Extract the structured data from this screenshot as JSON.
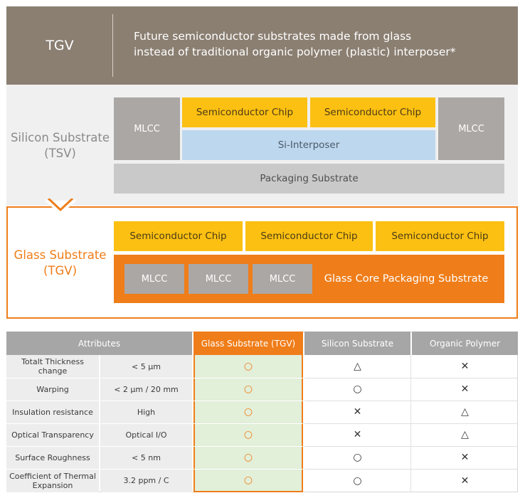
{
  "header": {
    "label": "TGV",
    "description_lines": [
      "Future semiconductor substrates made from glass",
      "instead of traditional organic polymer (plastic) interposer*"
    ]
  },
  "silicon": {
    "title_line1": "Silicon Substrate",
    "title_line2": "(TSV)",
    "mlcc_left": "MLCC",
    "mlcc_right": "MLCC",
    "chip1": "Semiconductor Chip",
    "chip2": "Semiconductor Chip",
    "interposer": "Si-Interposer",
    "packaging": "Packaging Substrate"
  },
  "glass": {
    "title_line1": "Glass Substrate",
    "title_line2": "(TGV)",
    "chips": [
      "Semiconductor Chip",
      "Semiconductor Chip",
      "Semiconductor Chip"
    ],
    "mlccs": [
      "MLCC",
      "MLCC",
      "MLCC"
    ],
    "core": "Glass Core Packaging Substrate"
  },
  "table": {
    "headers": {
      "attributes": "Attributes",
      "glass": "Glass Substrate (TGV)",
      "silicon": "Silicon Substrate",
      "organic": "Organic Polymer"
    },
    "rows": [
      {
        "attribute": "Totalt Thickness change",
        "value": "< 5 μm",
        "glass": "○",
        "silicon": "△",
        "organic": "✕"
      },
      {
        "attribute": "Warping",
        "value": "< 2 μm / 20 mm",
        "glass": "○",
        "silicon": "○",
        "organic": "✕"
      },
      {
        "attribute": "Insulation resistance",
        "value": "High",
        "glass": "○",
        "silicon": "✕",
        "organic": "△"
      },
      {
        "attribute": "Optical Transparency",
        "value": "Optical I/O",
        "glass": "○",
        "silicon": "✕",
        "organic": "△"
      },
      {
        "attribute": "Surface Roughness",
        "value": "< 5 nm",
        "glass": "○",
        "silicon": "○",
        "organic": "✕"
      },
      {
        "attribute": "Coefficient of Thermal Expansion",
        "value": "3.2 ppm / C",
        "glass": "○",
        "silicon": "○",
        "organic": "✕"
      }
    ]
  },
  "colors": {
    "header_bg": "#8b7f72",
    "orange": "#ef7d19",
    "chip_yellow": "#fcc012",
    "interposer_blue": "#bdd7ee",
    "mlcc_grey": "#aba7a5",
    "table_header_grey": "#a6a6a6",
    "glass_column_bg": "#e2efd9"
  }
}
